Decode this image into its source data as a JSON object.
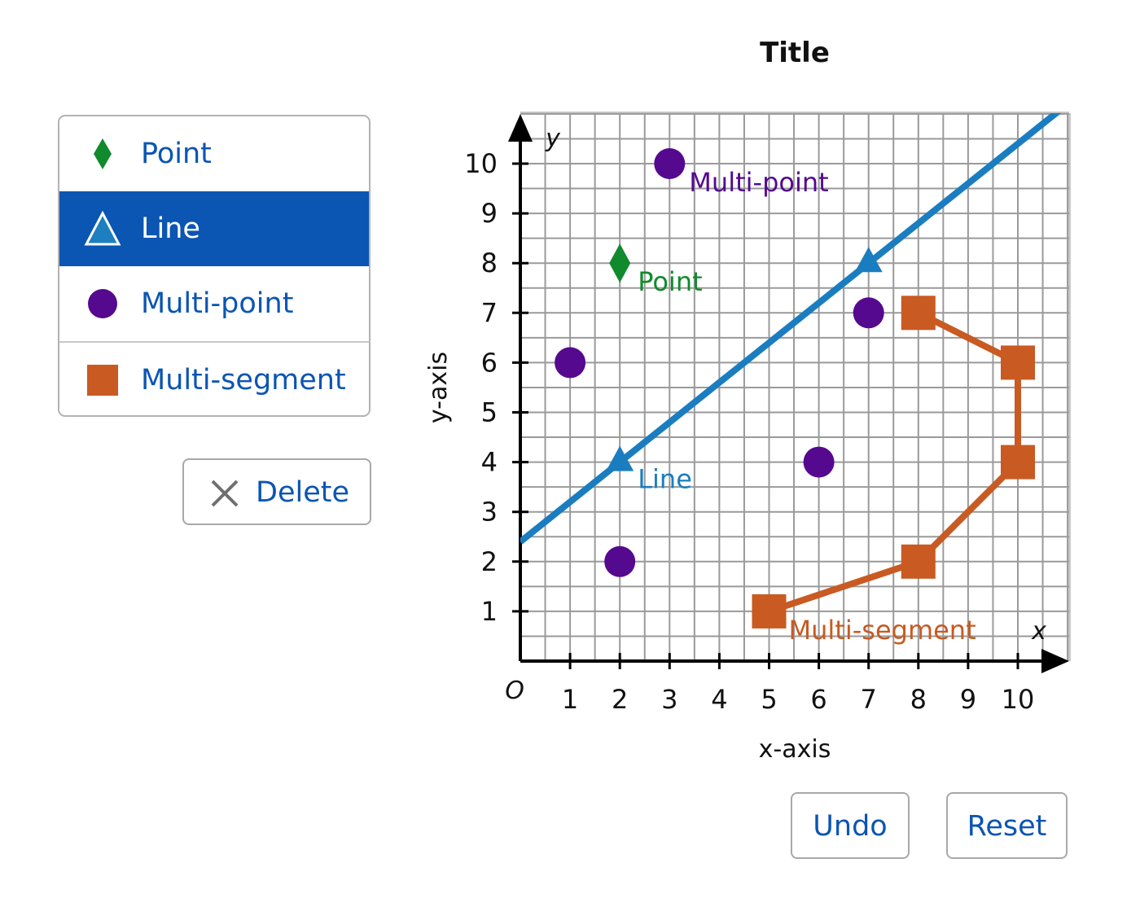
{
  "tools": [
    {
      "label": "Point",
      "icon": "diamond-icon",
      "color": "#118a2d",
      "selected": false
    },
    {
      "label": "Line",
      "icon": "triangle-icon",
      "color": "#1d7fbf",
      "selected": true
    },
    {
      "label": "Multi-point",
      "icon": "circle-icon",
      "color": "#55098f",
      "selected": false
    },
    {
      "label": "Multi-segment",
      "icon": "square-icon",
      "color": "#c85a22",
      "selected": false
    }
  ],
  "buttons": {
    "delete_label": "Delete",
    "undo_label": "Undo",
    "reset_label": "Reset"
  },
  "colors": {
    "accent": "#0b55b3",
    "point": "#118a2d",
    "line": "#1a7dc0",
    "multipoint": "#55098f",
    "multisegment": "#c85a22",
    "grid": "#9a9a9a"
  },
  "chart_data": {
    "type": "scatter",
    "title": "Title",
    "xlabel": "x-axis",
    "ylabel": "y-axis",
    "x_axis_letter": "x",
    "y_axis_letter": "y",
    "origin_label": "O",
    "xlim": [
      0,
      11
    ],
    "ylim": [
      0,
      11
    ],
    "xticks": [
      1,
      2,
      3,
      4,
      5,
      6,
      7,
      8,
      9,
      10
    ],
    "yticks": [
      1,
      2,
      3,
      4,
      5,
      6,
      7,
      8,
      9,
      10
    ],
    "grid": true,
    "series": [
      {
        "name": "Point",
        "kind": "point",
        "points": [
          [
            2,
            8
          ]
        ]
      },
      {
        "name": "Line",
        "kind": "line",
        "points": [
          [
            2,
            4
          ],
          [
            7,
            8
          ]
        ]
      },
      {
        "name": "Multi-point",
        "kind": "multipoint",
        "points": [
          [
            3,
            10
          ],
          [
            1,
            6
          ],
          [
            7,
            7
          ],
          [
            6,
            4
          ],
          [
            2,
            2
          ]
        ]
      },
      {
        "name": "Multi-segment",
        "kind": "multisegment",
        "points": [
          [
            5,
            1
          ],
          [
            8,
            2
          ],
          [
            10,
            4
          ],
          [
            10,
            6
          ],
          [
            8,
            7
          ]
        ]
      }
    ]
  }
}
